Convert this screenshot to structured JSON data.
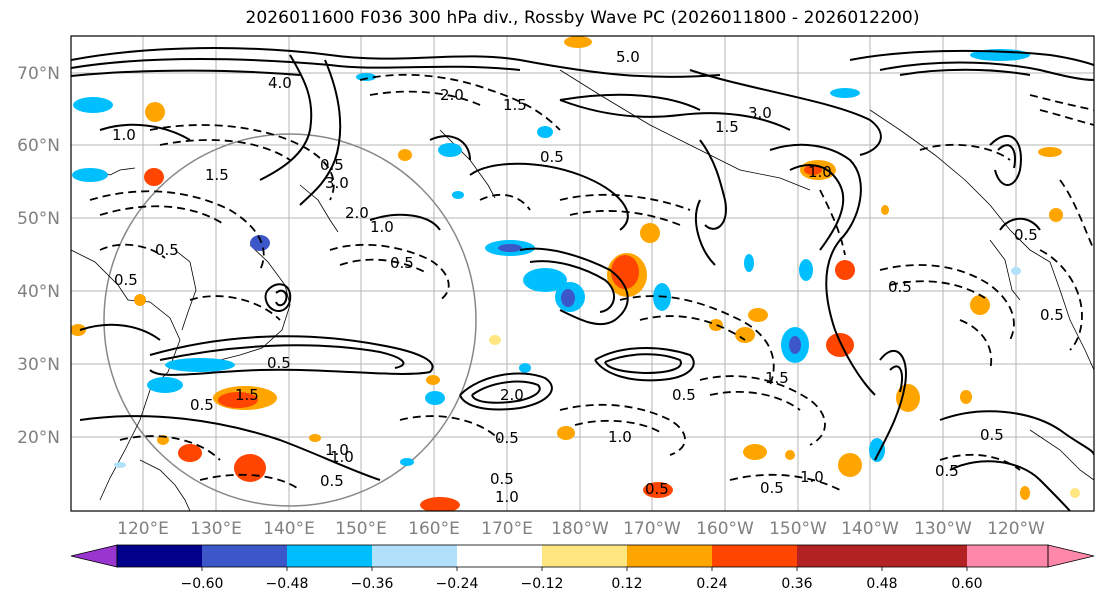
{
  "title": "2026011600 F036 300 hPa div., Rossby Wave PC (2026011800 - 2026012200)",
  "lat_labels": [
    "70°N",
    "60°N",
    "50°N",
    "40°N",
    "30°N",
    "20°N"
  ],
  "lon_labels": [
    "120°E",
    "130°E",
    "140°E",
    "150°E",
    "160°E",
    "170°E",
    "180°W",
    "170°W",
    "160°W",
    "150°W",
    "140°W",
    "130°W",
    "120°W"
  ],
  "colorbar": {
    "colors": [
      "#9a36d0",
      "#00008b",
      "#3c58c8",
      "#00bfff",
      "#b0e0fa",
      "#ffffff",
      "#ffe680",
      "#ffa500",
      "#ff4500",
      "#b22222",
      "#ff88aa"
    ],
    "tick_labels": [
      "−0.60",
      "−0.48",
      "−0.36",
      "−0.24",
      "−0.12",
      "0.12",
      "0.24",
      "0.36",
      "0.48",
      "0.60"
    ]
  },
  "contour_labels": [
    "5.0",
    "4.0",
    "1.0",
    "1.5",
    "0.5",
    "2.0",
    "3.0",
    "0.5",
    "1.5",
    "1.0",
    "0.5",
    "3.0",
    "2.0",
    "0.5",
    "0.5",
    "1.0",
    "1.5",
    "0.5",
    "0.5",
    "1.0",
    "0.5",
    "0.5",
    "1.0",
    "1.5",
    "0.5",
    "0.5",
    "1.0",
    "0.5",
    "0.5",
    "0.5",
    "1.0",
    "0.5",
    "0.5",
    "1.5",
    "0.5",
    "2.0",
    "1.0",
    "0.5"
  ]
}
